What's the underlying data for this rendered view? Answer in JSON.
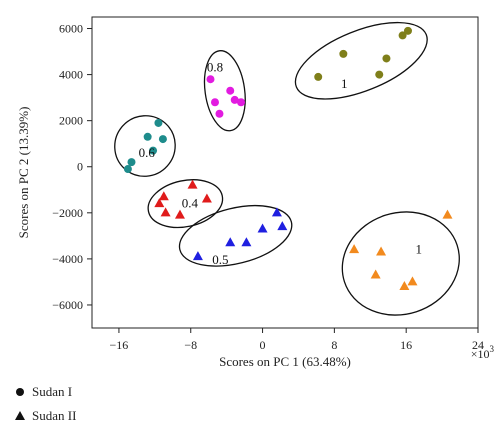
{
  "chart_data": {
    "type": "scatter",
    "xlabel": "Scores on PC 1 (63.48%)",
    "ylabel": "Scores on PC 2 (13.39%)",
    "x_multiplier_label": "×10",
    "x_multiplier_exp": "3",
    "xlim": [
      -19,
      24
    ],
    "ylim": [
      -7000,
      6500
    ],
    "xticks": [
      -16,
      -8,
      0,
      8,
      16,
      24
    ],
    "yticks": [
      -6000,
      -4000,
      -2000,
      0,
      2000,
      4000,
      6000
    ],
    "grid": false,
    "series": [
      {
        "name": "Sudan I",
        "level": "0.6",
        "marker": "circle",
        "color": "#1e8c8c",
        "points": [
          [
            -11.6,
            1900
          ],
          [
            -11.1,
            1200
          ],
          [
            -12.2,
            700
          ],
          [
            -12.8,
            1300
          ],
          [
            -14.6,
            200
          ],
          [
            -15.0,
            -100
          ]
        ]
      },
      {
        "name": "Sudan I",
        "level": "0.8",
        "marker": "circle",
        "color": "#e21be0",
        "points": [
          [
            -5.8,
            3800
          ],
          [
            -5.3,
            2800
          ],
          [
            -4.8,
            2300
          ],
          [
            -3.6,
            3300
          ],
          [
            -3.1,
            2900
          ],
          [
            -2.4,
            2800
          ]
        ]
      },
      {
        "name": "Sudan I",
        "level": "1",
        "marker": "circle",
        "color": "#7f7f1a",
        "points": [
          [
            6.2,
            3900
          ],
          [
            9.0,
            4900
          ],
          [
            13.0,
            4000
          ],
          [
            13.8,
            4700
          ],
          [
            15.6,
            5700
          ],
          [
            16.2,
            5900
          ]
        ]
      },
      {
        "name": "Sudan II",
        "level": "0.4",
        "marker": "triangle",
        "color": "#e01b1b",
        "points": [
          [
            -11.5,
            -1600
          ],
          [
            -11.0,
            -1300
          ],
          [
            -10.8,
            -2000
          ],
          [
            -9.2,
            -2100
          ],
          [
            -7.8,
            -800
          ],
          [
            -6.2,
            -1400
          ]
        ]
      },
      {
        "name": "Sudan II",
        "level": "0.5",
        "marker": "triangle",
        "color": "#1f1fe0",
        "points": [
          [
            -7.2,
            -3900
          ],
          [
            -3.6,
            -3300
          ],
          [
            -1.8,
            -3300
          ],
          [
            0.0,
            -2700
          ],
          [
            1.6,
            -2000
          ],
          [
            2.2,
            -2600
          ]
        ]
      },
      {
        "name": "Sudan II",
        "level": "1",
        "marker": "triangle",
        "color": "#f28a1e",
        "points": [
          [
            10.2,
            -3600
          ],
          [
            12.6,
            -4700
          ],
          [
            13.2,
            -3700
          ],
          [
            15.8,
            -5200
          ],
          [
            16.7,
            -5000
          ],
          [
            20.6,
            -2100
          ]
        ]
      }
    ],
    "clusters": [
      {
        "label": "0.6",
        "cx": -13.1,
        "cy": 900,
        "rx": 3.4,
        "ry": 1300,
        "angle": -48,
        "lx": -12.9,
        "ly": 600
      },
      {
        "label": "0.8",
        "cx": -4.2,
        "cy": 3300,
        "rx": 2.2,
        "ry": 1750,
        "angle": -8,
        "lx": -5.3,
        "ly": 4300
      },
      {
        "label": "1",
        "cx": 11.0,
        "cy": 4600,
        "rx": 7.8,
        "ry": 1300,
        "angle": -22,
        "lx": 9.1,
        "ly": 3600
      },
      {
        "label": "0.4",
        "cx": -8.6,
        "cy": -1600,
        "rx": 4.2,
        "ry": 1000,
        "angle": -12,
        "lx": -8.1,
        "ly": -1600
      },
      {
        "label": "0.5",
        "cx": -3.0,
        "cy": -3000,
        "rx": 6.4,
        "ry": 1200,
        "angle": -14,
        "lx": -4.7,
        "ly": -4050
      },
      {
        "label": "1",
        "cx": 15.4,
        "cy": -4200,
        "rx": 6.6,
        "ry": 2200,
        "angle": -18,
        "lx": 17.4,
        "ly": -3600
      }
    ],
    "legend": [
      {
        "marker": "circle",
        "label": "Sudan I"
      },
      {
        "marker": "triangle",
        "label": "Sudan II"
      }
    ]
  }
}
